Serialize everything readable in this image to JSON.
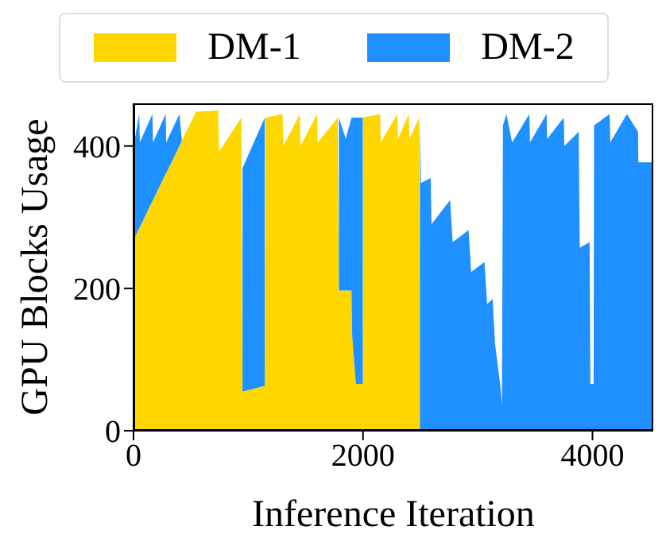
{
  "chart_data": {
    "type": "area",
    "stacked": true,
    "xlabel": "Inference Iteration",
    "ylabel": "GPU Blocks Usage",
    "x": [
      0,
      50,
      55,
      165,
      170,
      280,
      285,
      400,
      420,
      544,
      738,
      745,
      940,
      950,
      1144,
      1150,
      1300,
      1305,
      1450,
      1455,
      1600,
      1605,
      1780,
      1790,
      1850,
      1900,
      1906,
      1938,
      1998,
      2000,
      2150,
      2155,
      2300,
      2305,
      2400,
      2405,
      2490,
      2496,
      2505,
      2590,
      2597,
      2759,
      2782,
      2920,
      2943,
      3059,
      3082,
      3130,
      3151,
      3197,
      3211,
      3220,
      3250,
      3300,
      3450,
      3455,
      3600,
      3605,
      3750,
      3755,
      3880,
      3889,
      3975,
      3982,
      4010,
      4014,
      4150,
      4155,
      4300,
      4397,
      4400,
      4526
    ],
    "series": [
      {
        "name": "DM-1",
        "color": "#ffd700",
        "values": [
          268,
          285,
          286,
          323,
          324,
          361,
          362,
          400,
          407,
          448,
          450,
          392,
          440,
          55,
          63,
          440,
          445,
          400,
          445,
          400,
          445,
          405,
          440,
          197,
          197,
          197,
          133,
          66,
          66,
          440,
          445,
          405,
          445,
          410,
          445,
          410,
          440,
          0,
          0,
          0,
          0,
          0,
          0,
          0,
          0,
          0,
          0,
          0,
          0,
          0,
          0,
          0,
          0,
          0,
          0,
          0,
          0,
          0,
          0,
          0,
          0,
          0,
          0,
          0,
          0,
          0,
          0,
          0,
          0,
          0,
          0,
          0
        ]
      },
      {
        "name": "DM-2",
        "color": "#1e90ff",
        "values": [
          132,
          160,
          119,
          122,
          81,
          84,
          43,
          45,
          3,
          null,
          null,
          null,
          null,
          314,
          377,
          null,
          null,
          null,
          null,
          null,
          null,
          null,
          null,
          243,
          213,
          243,
          307,
          374,
          374,
          null,
          null,
          null,
          null,
          null,
          null,
          null,
          null,
          440,
          348,
          355,
          290,
          324,
          265,
          282,
          223,
          237,
          178,
          185,
          122,
          63,
          36,
          429,
          445,
          405,
          445,
          405,
          445,
          410,
          440,
          400,
          420,
          257,
          265,
          66,
          66,
          429,
          445,
          405,
          445,
          420,
          377,
          377
        ]
      }
    ],
    "xlim": [
      0,
      4530
    ],
    "xticks": [
      0,
      2000,
      4000
    ],
    "ylim": [
      0,
      460
    ],
    "yticks": [
      0,
      200,
      400
    ],
    "grid": false,
    "legend": "top"
  }
}
